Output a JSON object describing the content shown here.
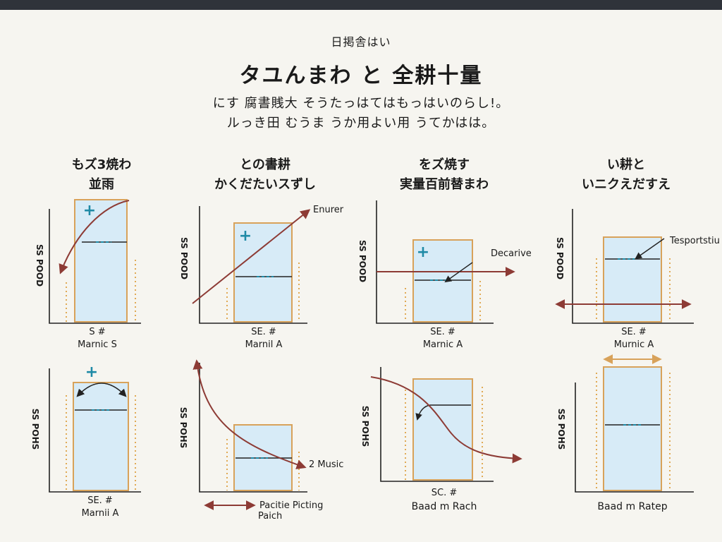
{
  "header": {
    "kicker": "日掲舎はい",
    "title": "タユんまわ と 全耕十量",
    "subtitle_line1": "にす 腐書賎大 そうたっはてはもっはいのらし!。",
    "subtitle_line2": "ルっき田 むうま うか用よい用 うてかはは。"
  },
  "panel_headers": [
    {
      "line1": "もズ3焼わ",
      "line2": "並雨"
    },
    {
      "line1": "との書耕",
      "line2": "かくだたいスずし"
    },
    {
      "line1": "をズ焼す",
      "line2": "実量百前替まわ"
    },
    {
      "line1": "い耕と",
      "line2": "いニクえだすえ"
    }
  ],
  "panels": [
    {
      "y_label": "SS POOD",
      "x_label_1": "S #",
      "x_label_2": "Marnic S",
      "annotation": ""
    },
    {
      "y_label": "SS POOD",
      "x_label_1": "SE. #",
      "x_label_2": "Marnil A",
      "annotation": "Enurer"
    },
    {
      "y_label": "SS POOD",
      "x_label_1": "SE. #",
      "x_label_2": "Marnic A",
      "annotation": "Decarive"
    },
    {
      "y_label": "SS POOD",
      "x_label_1": "SE. #",
      "x_label_2": "Murnic A",
      "annotation": "Tesportstiu"
    },
    {
      "y_label": "SS POHS",
      "x_label_1": "SE. #",
      "x_label_2": "Marnii A",
      "annotation": ""
    },
    {
      "y_label": "SS POHS",
      "x_label_1": "Pacitie Picting",
      "x_label_2": "Paich",
      "annotation": "2 Music"
    },
    {
      "y_label": "SS POHS",
      "x_label_1": "SC. #",
      "x_label_2": "Baad m Rach",
      "annotation": ""
    },
    {
      "y_label": "SS POHS",
      "x_label_1": "",
      "x_label_2": "Baad m Ratep",
      "annotation": ""
    }
  ],
  "colors": {
    "background": "#f6f5f0",
    "box_fill": "#d7ebf7",
    "box_stroke": "#d8a25a",
    "curve": "#8d3b35",
    "marker": "#1f8aa6",
    "axis": "#222222",
    "dotted": "#e0aa55"
  },
  "icons": {
    "plus_marker": "plus-icon",
    "double_arrow": "double-arrow-icon"
  }
}
